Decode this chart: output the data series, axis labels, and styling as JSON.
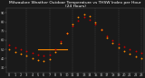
{
  "title": "Milwaukee Weather Outdoor Temperature vs THSW Index per Hour (24 Hours)",
  "title_fontsize": 3.2,
  "background_color": "#1a1a1a",
  "plot_bg_color": "#1a1a1a",
  "grid_color": "#555555",
  "xlim": [
    -0.5,
    23.5
  ],
  "ylim": [
    25,
    95
  ],
  "ytick_vals": [
    30,
    40,
    50,
    60,
    70,
    80,
    90
  ],
  "xticks": [
    0,
    1,
    2,
    3,
    4,
    5,
    6,
    7,
    8,
    9,
    10,
    11,
    12,
    13,
    14,
    15,
    16,
    17,
    18,
    19,
    20,
    21,
    22,
    23
  ],
  "tick_fontsize": 2.5,
  "tick_color": "#cccccc",
  "vgrid_positions": [
    3,
    7,
    11,
    15,
    19,
    23
  ],
  "temp_points": [
    [
      0,
      55
    ],
    [
      1,
      52
    ],
    [
      2,
      50
    ],
    [
      3,
      48
    ],
    [
      4,
      46
    ],
    [
      5,
      44
    ],
    [
      6,
      43
    ],
    [
      7,
      44
    ],
    [
      8,
      50
    ],
    [
      9,
      59
    ],
    [
      10,
      68
    ],
    [
      11,
      76
    ],
    [
      12,
      82
    ],
    [
      13,
      85
    ],
    [
      14,
      83
    ],
    [
      15,
      78
    ],
    [
      16,
      72
    ],
    [
      17,
      65
    ],
    [
      18,
      60
    ],
    [
      19,
      56
    ],
    [
      20,
      53
    ],
    [
      21,
      50
    ],
    [
      22,
      48
    ],
    [
      23,
      46
    ]
  ],
  "thsw_points": [
    [
      0,
      50
    ],
    [
      1,
      47
    ],
    [
      2,
      45
    ],
    [
      3,
      43
    ],
    [
      4,
      40
    ],
    [
      5,
      38
    ],
    [
      6,
      37
    ],
    [
      7,
      39
    ],
    [
      8,
      47
    ],
    [
      9,
      57
    ],
    [
      10,
      68
    ],
    [
      11,
      78
    ],
    [
      12,
      85
    ],
    [
      13,
      88
    ],
    [
      14,
      86
    ],
    [
      15,
      80
    ],
    [
      16,
      72
    ],
    [
      17,
      63
    ],
    [
      18,
      57
    ],
    [
      19,
      52
    ],
    [
      20,
      48
    ],
    [
      21,
      45
    ],
    [
      22,
      42
    ],
    [
      23,
      40
    ]
  ],
  "temp_color": "#cc0000",
  "thsw_color": "#ff8800",
  "dot_size": 1.8,
  "orange_line_x_start": 5,
  "orange_line_x_end": 10,
  "orange_line_y": 50,
  "extra_points_black": [
    [
      0,
      62
    ],
    [
      2,
      56
    ],
    [
      4,
      52
    ],
    [
      6,
      48
    ],
    [
      8,
      58
    ],
    [
      10,
      72
    ],
    [
      12,
      80
    ],
    [
      14,
      85
    ],
    [
      16,
      76
    ],
    [
      18,
      64
    ],
    [
      20,
      57
    ],
    [
      22,
      52
    ]
  ],
  "black_dot_color": "#111111",
  "title_color": "#ffffff",
  "label_color": "#cccccc"
}
